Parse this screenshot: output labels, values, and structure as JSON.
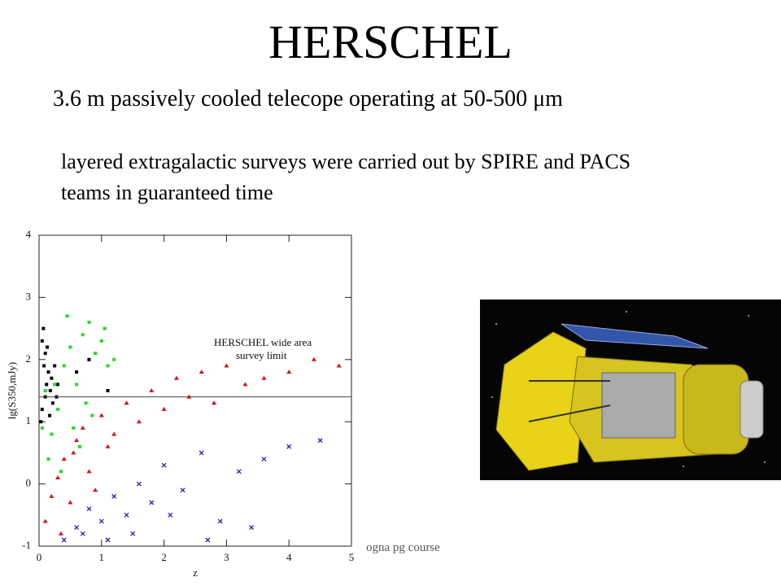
{
  "header": {
    "title": "HERSCHEL"
  },
  "subtitle": "3.6 m passively cooled telecope operating at 50-500 μm",
  "body": {
    "lines": [
      "layered extragalactic surveys were carried out by SPIRE and PACS",
      "teams in guaranteed time"
    ]
  },
  "footer": "ogna pg course",
  "chart_data": {
    "type": "scatter",
    "x_label": "z",
    "y_label": "lg(S350,mJy)",
    "annotation": [
      "HERSCHEL wide area",
      "survey limit"
    ],
    "limit_line": 1.4,
    "xlim": [
      0,
      5
    ],
    "ylim": [
      -1,
      4
    ],
    "xticks": [
      0,
      1,
      2,
      3,
      4,
      5
    ],
    "yticks": [
      -1,
      0,
      1,
      2,
      3,
      4
    ],
    "series": [
      {
        "color": "#000000",
        "marker": "square",
        "x": [
          0.05,
          0.08,
          0.1,
          0.12,
          0.15,
          0.18,
          0.2,
          0.05,
          0.1,
          0.25,
          0.3,
          0.07,
          0.13,
          0.22,
          0.6,
          0.8,
          1.1,
          0.03,
          0.17,
          0.28
        ],
        "values": [
          2.3,
          1.9,
          2.1,
          1.6,
          1.8,
          1.5,
          1.7,
          1.2,
          1.4,
          1.9,
          1.6,
          2.5,
          2.2,
          1.3,
          1.8,
          2.0,
          1.5,
          1.0,
          1.1,
          1.4
        ]
      },
      {
        "color": "#22dd22",
        "marker": "square",
        "x": [
          0.1,
          0.2,
          0.3,
          0.4,
          0.5,
          0.6,
          0.7,
          0.8,
          0.9,
          1.0,
          1.1,
          1.2,
          0.15,
          0.35,
          0.55,
          0.75,
          0.25,
          0.45,
          0.65,
          0.85,
          1.05,
          0.05
        ],
        "values": [
          1.5,
          0.8,
          1.2,
          1.9,
          2.2,
          1.6,
          2.4,
          2.6,
          2.1,
          2.3,
          1.9,
          2.0,
          0.4,
          0.2,
          0.9,
          1.3,
          1.6,
          2.7,
          0.6,
          1.1,
          2.5,
          0.9
        ]
      },
      {
        "color": "#dd1111",
        "marker": "triangle",
        "x": [
          0.1,
          0.2,
          0.3,
          0.4,
          0.5,
          0.6,
          0.7,
          0.8,
          1.0,
          1.2,
          1.4,
          1.6,
          1.8,
          2.0,
          2.2,
          2.4,
          2.6,
          2.8,
          3.0,
          3.3,
          3.6,
          4.0,
          4.4,
          4.8,
          0.35,
          0.55,
          0.9,
          1.1
        ],
        "values": [
          -0.6,
          -0.2,
          0.1,
          0.4,
          -0.3,
          0.7,
          0.9,
          0.2,
          1.1,
          0.8,
          1.3,
          1.0,
          1.5,
          1.2,
          1.7,
          1.4,
          1.8,
          1.3,
          1.9,
          1.6,
          1.7,
          1.8,
          2.0,
          1.9,
          -0.8,
          0.5,
          -0.1,
          0.6
        ]
      },
      {
        "color": "#2222cc",
        "marker": "cross",
        "x": [
          0.4,
          0.6,
          0.8,
          1.0,
          1.2,
          1.4,
          1.6,
          1.8,
          2.0,
          2.3,
          2.6,
          2.9,
          3.2,
          3.6,
          4.0,
          4.5,
          0.7,
          1.1,
          1.5,
          2.1,
          2.7,
          3.4
        ],
        "values": [
          -0.9,
          -0.7,
          -0.4,
          -0.6,
          -0.2,
          -0.5,
          0.0,
          -0.3,
          0.3,
          -0.1,
          0.5,
          -0.6,
          0.2,
          0.4,
          0.6,
          0.7,
          -0.8,
          -0.9,
          -0.8,
          -0.5,
          -0.9,
          -0.7
        ]
      }
    ]
  }
}
